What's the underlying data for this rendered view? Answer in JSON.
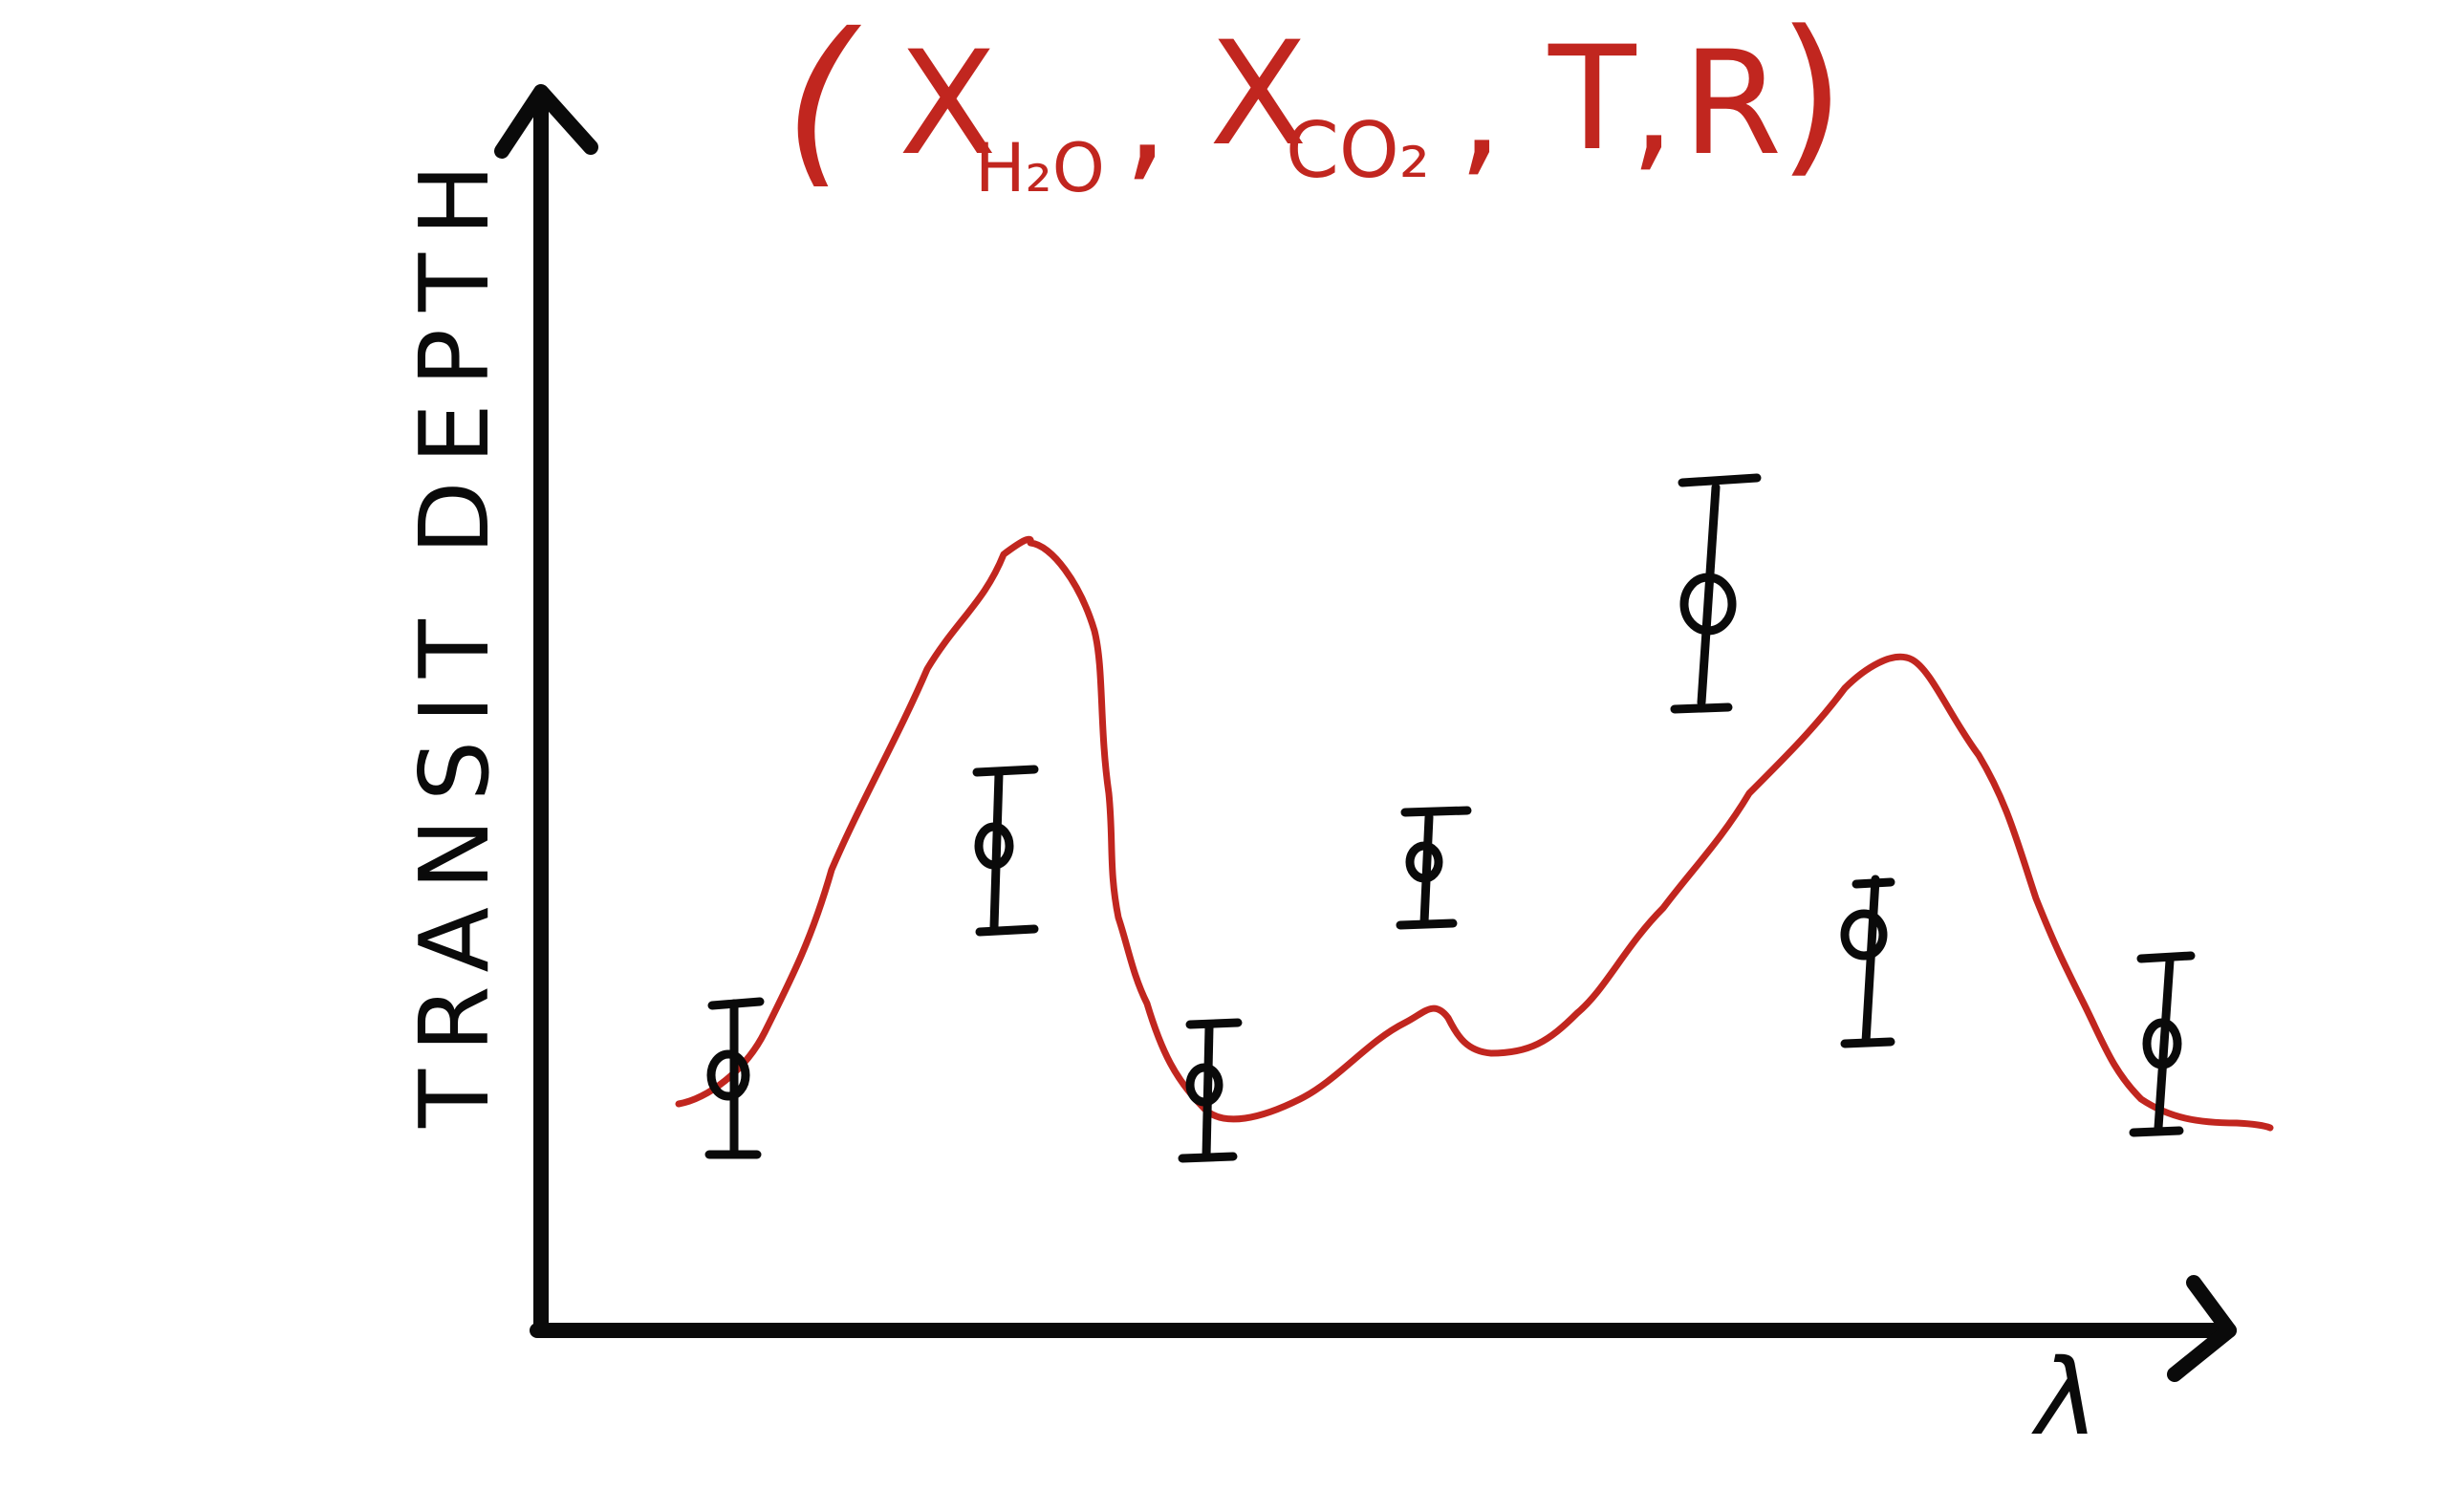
{
  "title": {
    "open": "(",
    "x1": "X",
    "x1_sub": "H₂O",
    "comma1": ",",
    "x2": "X",
    "x2_sub": "CO₂",
    "comma2": ",",
    "t": "T",
    "comma3": ",",
    "r": "R",
    "close": ")"
  },
  "y_axis_label": "TRANSIT DEPTH",
  "x_axis_label": "λ",
  "colors": {
    "ink": "#0a0a0a",
    "model": "#c1261f"
  },
  "notes": "Hand-drawn sketch: model transmission spectrum (red curve) with data points and error bars (black)."
}
